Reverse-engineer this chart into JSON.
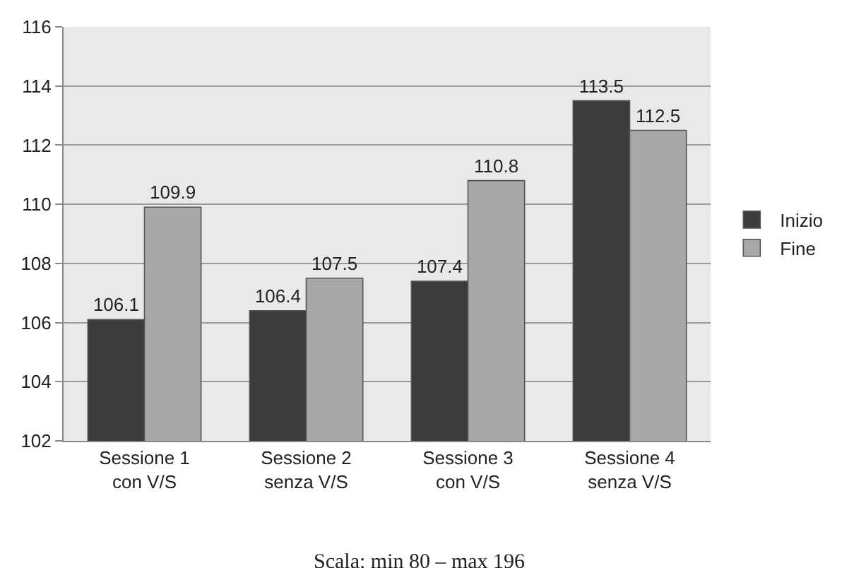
{
  "chart_data": {
    "type": "bar",
    "categories": [
      "Sessione 1\ncon V/S",
      "Sessione 2\nsenza V/S",
      "Sessione 3\ncon V/S",
      "Sessione 4\nsenza V/S"
    ],
    "series": [
      {
        "name": "Inizio",
        "color": "#3c3c3c",
        "values": [
          106.1,
          106.4,
          107.4,
          113.5
        ]
      },
      {
        "name": "Fine",
        "color": "#a8a8a8",
        "values": [
          109.9,
          107.5,
          110.8,
          112.5
        ]
      }
    ],
    "ylim": [
      102,
      116
    ],
    "yticks": [
      102,
      104,
      106,
      108,
      110,
      112,
      114,
      116
    ],
    "grid": "y",
    "legend": "right",
    "data_labels": true,
    "annotations": [
      "Scala: min 80 – max 196"
    ]
  }
}
